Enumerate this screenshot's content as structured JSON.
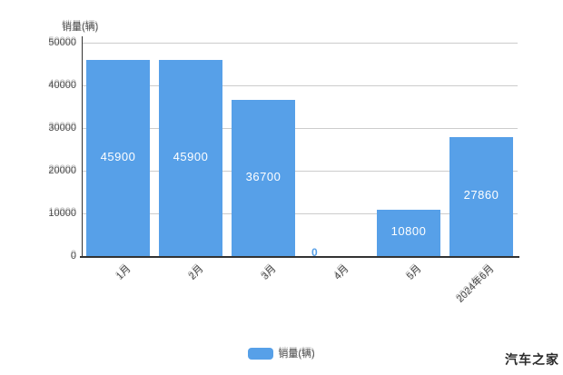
{
  "watermark": {
    "text": "汽车之家"
  },
  "legend": {
    "label": "销量(辆)",
    "swatch_color": "#57A0E8"
  },
  "y_axis": {
    "name": "销量(辆)",
    "ticks": [
      "50000",
      "40000",
      "30000",
      "20000",
      "10000",
      "0"
    ]
  },
  "chart_data": {
    "type": "bar",
    "categories": [
      "1月",
      "2月",
      "3月",
      "4月",
      "5月",
      "2024年6月"
    ],
    "values": [
      45900,
      45900,
      36700,
      0,
      10800,
      27860
    ],
    "bar_labels": [
      "45900",
      "45900",
      "36700",
      "0",
      "10800",
      "27860"
    ],
    "title": "",
    "xlabel": "",
    "ylabel": "销量(辆)",
    "ylim": [
      0,
      50000
    ],
    "y_tick_step": 10000,
    "grid": true,
    "legend": [
      "销量(辆)"
    ],
    "legend_position": "bottom",
    "bar_color": "#57A0E8",
    "bar_label_color": "#ffffff",
    "zero_label_color": "#57A0E8",
    "axis_line_color": "#333333",
    "grid_color": "#cccccc"
  }
}
